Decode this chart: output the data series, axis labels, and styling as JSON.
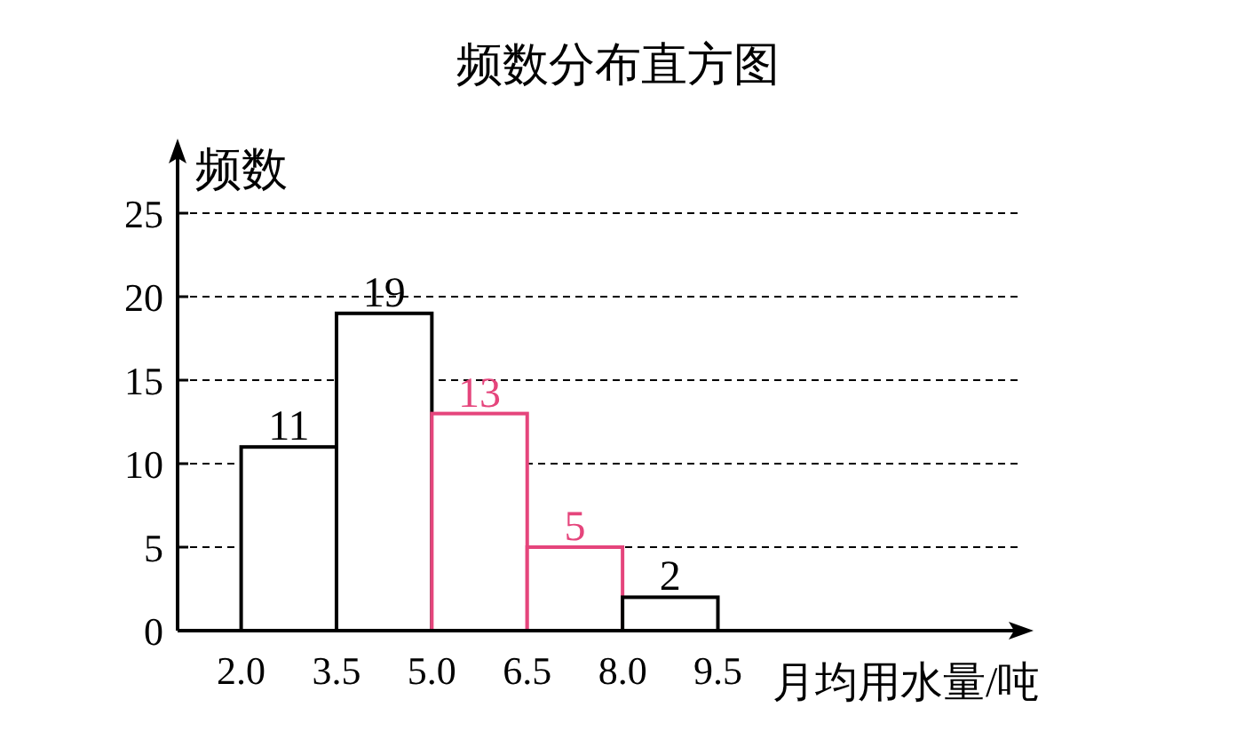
{
  "chart_data": {
    "type": "histogram",
    "title": "频数分布直方图",
    "xlabel": "月均用水量/吨",
    "ylabel": "频数",
    "bins": [
      2.0,
      3.5,
      5.0,
      6.5,
      8.0,
      9.5
    ],
    "values": [
      11,
      19,
      13,
      5,
      2
    ],
    "colors": [
      "#000000",
      "#000000",
      "#e5457c",
      "#e5457c",
      "#000000"
    ],
    "xlim": [
      1.0,
      14.27
    ],
    "ylim": [
      0,
      25
    ],
    "xticks": [
      {
        "value": 2.0,
        "label": "2.0"
      },
      {
        "value": 3.5,
        "label": "3.5"
      },
      {
        "value": 5.0,
        "label": "5.0"
      },
      {
        "value": 6.5,
        "label": "6.5"
      },
      {
        "value": 8.0,
        "label": "8.0"
      },
      {
        "value": 9.5,
        "label": "9.5"
      }
    ],
    "yticks": [
      0,
      5,
      10,
      15,
      20,
      25
    ],
    "grid": "y",
    "data_labels": true
  }
}
